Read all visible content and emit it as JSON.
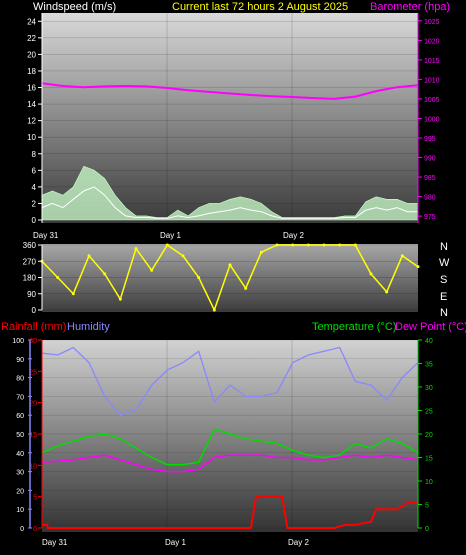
{
  "header": {
    "left_label": "Windspeed (m/s)",
    "center_label": "Current last 72 hours 2 August 2025",
    "right_label": "Barometer (hpa)"
  },
  "lower_header": {
    "rainfall_label": "Rainfall (mm)",
    "humidity_label": "Humidity",
    "temperature_label": "Temperature (°C)",
    "dewpoint_label": "Dew Point (°C)"
  },
  "compass": [
    "N",
    "W",
    "S",
    "E",
    "N"
  ],
  "day_labels": [
    "Day 31",
    "Day 1",
    "Day 2"
  ],
  "colors": {
    "windspeed": "#ffffff",
    "windgust": "#ccffcc",
    "barometer": "#ff00ff",
    "direction": "#ffff00",
    "rainfall": "#ff0000",
    "humidity": "#8888ff",
    "temperature": "#00dd00",
    "dewpoint": "#ff00ff",
    "center_title": "#ffff00"
  },
  "chart_data": [
    {
      "type": "line",
      "name": "wind-barometer",
      "x_range_hours": [
        0,
        72
      ],
      "left_axis": {
        "ticks": [
          0,
          2,
          4,
          6,
          8,
          10,
          12,
          14,
          16,
          18,
          20,
          22,
          24
        ],
        "range": [
          0,
          25
        ]
      },
      "right_axis": {
        "ticks": [
          975,
          980,
          985,
          990,
          995,
          1000,
          1005,
          1010,
          1015,
          1020,
          1025
        ],
        "range": [
          974,
          1027
        ]
      },
      "series": [
        {
          "name": "Windspeed",
          "axis": "left",
          "x": [
            0,
            2,
            4,
            6,
            8,
            10,
            12,
            14,
            16,
            18,
            20,
            22,
            24,
            26,
            28,
            30,
            32,
            34,
            36,
            38,
            40,
            42,
            44,
            46,
            48,
            50,
            52,
            54,
            56,
            58,
            60,
            62,
            64,
            66,
            68,
            70,
            72
          ],
          "values": [
            1.5,
            2.0,
            1.5,
            2.5,
            3.5,
            4.0,
            3.0,
            1.5,
            0.5,
            0.3,
            0.3,
            0.2,
            0.2,
            0.5,
            0.3,
            0.5,
            0.8,
            1.0,
            1.2,
            1.5,
            1.2,
            1.0,
            0.5,
            0.2,
            0.2,
            0.2,
            0.2,
            0.2,
            0.2,
            0.3,
            0.3,
            1.2,
            1.5,
            1.2,
            1.5,
            1.0,
            1.0
          ]
        },
        {
          "name": "Gust",
          "axis": "left",
          "x": [
            0,
            2,
            4,
            6,
            8,
            10,
            12,
            14,
            16,
            18,
            20,
            22,
            24,
            26,
            28,
            30,
            32,
            34,
            36,
            38,
            40,
            42,
            44,
            46,
            48,
            50,
            52,
            54,
            56,
            58,
            60,
            62,
            64,
            66,
            68,
            70,
            72
          ],
          "values": [
            3.0,
            3.5,
            3.0,
            4.0,
            6.5,
            6.0,
            5.0,
            3.0,
            1.5,
            0.5,
            0.5,
            0.3,
            0.3,
            1.2,
            0.5,
            1.5,
            2.0,
            2.0,
            2.5,
            2.8,
            2.5,
            2.0,
            1.0,
            0.3,
            0.3,
            0.3,
            0.3,
            0.3,
            0.3,
            0.5,
            0.5,
            2.2,
            2.8,
            2.5,
            2.5,
            2.0,
            2.0
          ]
        },
        {
          "name": "Barometer",
          "axis": "right",
          "x": [
            0,
            4,
            8,
            12,
            16,
            20,
            24,
            28,
            32,
            36,
            40,
            44,
            48,
            52,
            56,
            60,
            64,
            68,
            72
          ],
          "values": [
            1009.0,
            1008.3,
            1008.0,
            1008.2,
            1008.3,
            1008.2,
            1007.8,
            1007.2,
            1006.8,
            1006.4,
            1006.0,
            1005.7,
            1005.5,
            1005.2,
            1005.0,
            1005.6,
            1007.0,
            1008.0,
            1008.5
          ]
        }
      ]
    },
    {
      "type": "scatter",
      "name": "wind-direction",
      "x_range_hours": [
        0,
        72
      ],
      "left_axis": {
        "ticks": [
          0,
          90,
          180,
          270,
          360
        ],
        "range": [
          0,
          360
        ]
      },
      "series": [
        {
          "name": "Direction",
          "x": [
            0,
            3,
            6,
            9,
            12,
            15,
            18,
            21,
            24,
            27,
            30,
            33,
            36,
            39,
            42,
            45,
            48,
            51,
            54,
            57,
            60,
            63,
            66,
            69,
            72
          ],
          "values": [
            270,
            180,
            90,
            300,
            200,
            60,
            340,
            220,
            360,
            300,
            180,
            0,
            250,
            120,
            320,
            360,
            360,
            360,
            360,
            360,
            360,
            200,
            100,
            300,
            240
          ]
        }
      ]
    },
    {
      "type": "line",
      "name": "temperature-humidity-rain",
      "x_range_hours": [
        0,
        72
      ],
      "rain_axis": {
        "ticks": [
          0,
          5,
          10,
          15,
          20,
          25,
          30
        ],
        "range": [
          0,
          30
        ]
      },
      "humidity_axis": {
        "ticks": [
          0,
          10,
          20,
          30,
          40,
          50,
          60,
          70,
          80,
          90,
          100
        ],
        "range": [
          0,
          100
        ]
      },
      "temp_axis": {
        "ticks": [
          0,
          5,
          10,
          15,
          20,
          25,
          30,
          35,
          40
        ],
        "range": [
          0,
          40
        ]
      },
      "series": [
        {
          "name": "Humidity",
          "axis": "humidity",
          "x": [
            0,
            3,
            6,
            9,
            12,
            15,
            18,
            21,
            24,
            27,
            30,
            33,
            36,
            39,
            42,
            45,
            48,
            51,
            54,
            57,
            60,
            63,
            66,
            69,
            72
          ],
          "values": [
            93,
            92,
            96,
            88,
            70,
            60,
            63,
            76,
            84,
            88,
            94,
            67,
            76,
            70,
            70,
            72,
            88,
            92,
            94,
            96,
            78,
            76,
            68,
            80,
            88
          ]
        },
        {
          "name": "Temperature",
          "axis": "temp",
          "x": [
            0,
            3,
            6,
            9,
            12,
            15,
            18,
            21,
            24,
            27,
            30,
            33,
            36,
            39,
            42,
            45,
            48,
            51,
            54,
            57,
            60,
            63,
            66,
            69,
            72
          ],
          "values": [
            16,
            17.5,
            18.5,
            19.5,
            20,
            19,
            17,
            15,
            13.5,
            13.5,
            14,
            21,
            20,
            19,
            18.5,
            18,
            16.5,
            15.5,
            15,
            15.5,
            18,
            17,
            19,
            18,
            16
          ]
        },
        {
          "name": "Dew Point",
          "axis": "temp",
          "x": [
            0,
            3,
            6,
            9,
            12,
            15,
            18,
            21,
            24,
            27,
            30,
            33,
            36,
            39,
            42,
            45,
            48,
            51,
            54,
            57,
            60,
            63,
            66,
            69,
            72
          ],
          "values": [
            14,
            14.2,
            14.5,
            15,
            15.5,
            14.5,
            13.5,
            12.5,
            12,
            12,
            12.5,
            15,
            15.5,
            15.5,
            15.5,
            15,
            15,
            14.5,
            14.5,
            15,
            15.5,
            15,
            15.5,
            15,
            14.5
          ]
        },
        {
          "name": "Rainfall",
          "axis": "rain",
          "x": [
            0,
            1,
            1.1,
            20,
            40,
            41,
            42,
            46,
            47,
            48,
            56,
            58,
            60,
            63,
            64,
            68,
            70,
            72
          ],
          "values": [
            0.5,
            0.5,
            0,
            0,
            0,
            5,
            5,
            5,
            0,
            0,
            0,
            0.5,
            0.5,
            1,
            3,
            3,
            4,
            4
          ]
        }
      ]
    }
  ]
}
